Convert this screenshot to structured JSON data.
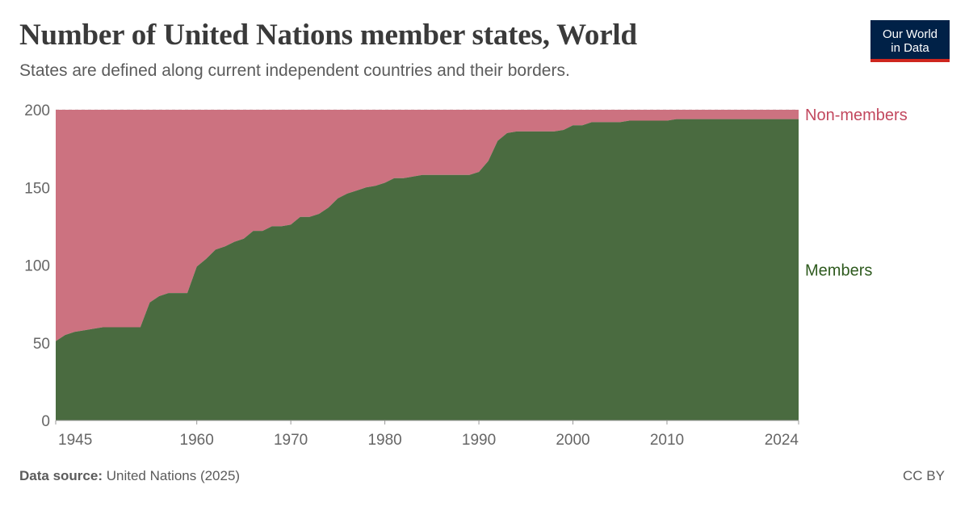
{
  "header": {
    "title": "Number of United Nations member states, World",
    "subtitle": "States are defined along current independent countries and their borders."
  },
  "logo": {
    "line1": "Our World",
    "line2": "in Data"
  },
  "footer": {
    "source_label": "Data source:",
    "source_value": "United Nations (2025)",
    "license": "CC BY"
  },
  "colors": {
    "members": "#4a6b40",
    "non_members": "#cc7280",
    "members_label": "#2e5a1e",
    "non_members_label": "#c2485e"
  },
  "chart_data": {
    "type": "area",
    "stacked": true,
    "title": "Number of United Nations member states, World",
    "subtitle": "States are defined along current independent countries and their borders.",
    "xlabel": "",
    "ylabel": "",
    "xlim": [
      1945,
      2024
    ],
    "ylim": [
      0,
      200
    ],
    "x_ticks": [
      1945,
      1960,
      1970,
      1980,
      1990,
      2000,
      2010,
      2024
    ],
    "y_ticks": [
      0,
      50,
      100,
      150,
      200
    ],
    "grid": "horizontal dashed",
    "legend": "right (inline labels)",
    "x": [
      1945,
      1946,
      1947,
      1948,
      1949,
      1950,
      1951,
      1952,
      1953,
      1954,
      1955,
      1956,
      1957,
      1958,
      1959,
      1960,
      1961,
      1962,
      1963,
      1964,
      1965,
      1966,
      1967,
      1968,
      1969,
      1970,
      1971,
      1972,
      1973,
      1974,
      1975,
      1976,
      1977,
      1978,
      1979,
      1980,
      1981,
      1982,
      1983,
      1984,
      1985,
      1986,
      1987,
      1988,
      1989,
      1990,
      1991,
      1992,
      1993,
      1994,
      1995,
      1996,
      1997,
      1998,
      1999,
      2000,
      2001,
      2002,
      2003,
      2004,
      2005,
      2006,
      2007,
      2008,
      2009,
      2010,
      2011,
      2012,
      2013,
      2014,
      2015,
      2016,
      2017,
      2018,
      2019,
      2020,
      2021,
      2022,
      2023,
      2024
    ],
    "series": [
      {
        "name": "Members",
        "values": [
          51,
          55,
          57,
          58,
          59,
          60,
          60,
          60,
          60,
          60,
          76,
          80,
          82,
          82,
          82,
          99,
          104,
          110,
          112,
          115,
          117,
          122,
          122,
          125,
          125,
          126,
          131,
          131,
          133,
          137,
          143,
          146,
          148,
          150,
          151,
          153,
          156,
          156,
          157,
          158,
          158,
          158,
          158,
          158,
          158,
          160,
          167,
          180,
          185,
          186,
          186,
          186,
          186,
          186,
          187,
          190,
          190,
          192,
          192,
          192,
          192,
          193,
          193,
          193,
          193,
          193,
          194,
          194,
          194,
          194,
          194,
          194,
          194,
          194,
          194,
          194,
          194,
          194,
          194,
          194
        ]
      },
      {
        "name": "Non-members",
        "values": [
          149,
          145,
          143,
          142,
          141,
          140,
          140,
          140,
          140,
          140,
          124,
          120,
          118,
          118,
          118,
          101,
          96,
          90,
          88,
          85,
          83,
          78,
          78,
          75,
          75,
          74,
          69,
          69,
          67,
          63,
          57,
          54,
          52,
          50,
          49,
          47,
          44,
          44,
          43,
          42,
          42,
          42,
          42,
          42,
          42,
          40,
          33,
          20,
          15,
          14,
          14,
          14,
          14,
          14,
          13,
          10,
          10,
          8,
          8,
          8,
          8,
          7,
          7,
          7,
          7,
          7,
          6,
          6,
          6,
          6,
          6,
          6,
          6,
          6,
          6,
          6,
          6,
          6,
          6,
          6
        ]
      }
    ]
  }
}
